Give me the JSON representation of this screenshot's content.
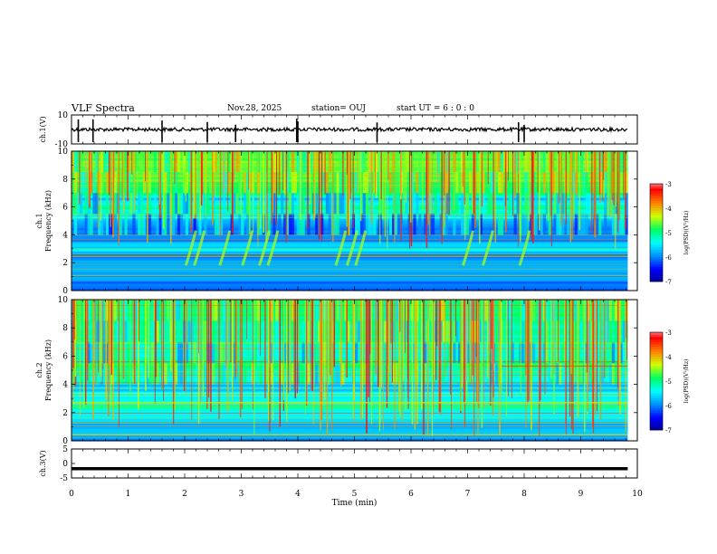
{
  "header": {
    "title": "VLF Spectra",
    "date": "Nov.28, 2025",
    "station": "station= OUJ",
    "start": "start  UT =  6 : 0 : 0"
  },
  "chart_data": [
    {
      "type": "line",
      "name": "ch1-waveform",
      "ylabel": "ch.1(V)",
      "ylim": [
        -10,
        10
      ],
      "yticks": [
        10,
        -10
      ],
      "spikes_min": [
        0.12,
        0.38,
        1.6,
        2.4,
        2.9,
        3.98,
        4.0,
        5.4,
        7.9,
        8.0
      ],
      "baseline": 0
    },
    {
      "type": "heatmap",
      "name": "ch1-spectrogram",
      "ylabel_top": "ch.1",
      "ylabel": "Frequency  (kHz)",
      "ylim": [
        0,
        10
      ],
      "yticks": [
        0,
        2,
        4,
        6,
        8,
        10
      ],
      "colorbar": {
        "label": "log(PSD)(V²/Hz)",
        "range": [
          -7,
          -3
        ],
        "ticks": [
          -3,
          -4,
          -5,
          -6,
          -7
        ]
      },
      "colormap": [
        "#00008c",
        "#0000ff",
        "#0090ff",
        "#00ffff",
        "#00ff60",
        "#d0ff00",
        "#ff8000",
        "#ff0000",
        "#ffffff"
      ]
    },
    {
      "type": "heatmap",
      "name": "ch2-spectrogram",
      "ylabel_top": "ch.2",
      "ylabel": "Frequency  (kHz)",
      "ylim": [
        0,
        10
      ],
      "yticks": [
        0,
        2,
        4,
        6,
        8,
        10
      ],
      "colorbar": {
        "label": "log(PSD)(V²/Hz)",
        "range": [
          -7,
          -3
        ],
        "ticks": [
          -3,
          -4,
          -5,
          -6,
          -7
        ]
      }
    },
    {
      "type": "line",
      "name": "ch3-waveform",
      "ylabel": "ch.3(V)",
      "ylim": [
        -5,
        5
      ],
      "yticks": [
        5,
        0,
        -5
      ],
      "level": -1.8
    }
  ],
  "xaxis": {
    "label": "Time  (min)",
    "ticks": [
      "0",
      "1",
      "2",
      "3",
      "4",
      "5",
      "6",
      "7",
      "8",
      "9",
      "10"
    ],
    "range": [
      0,
      10
    ],
    "data_end": 9.83
  }
}
